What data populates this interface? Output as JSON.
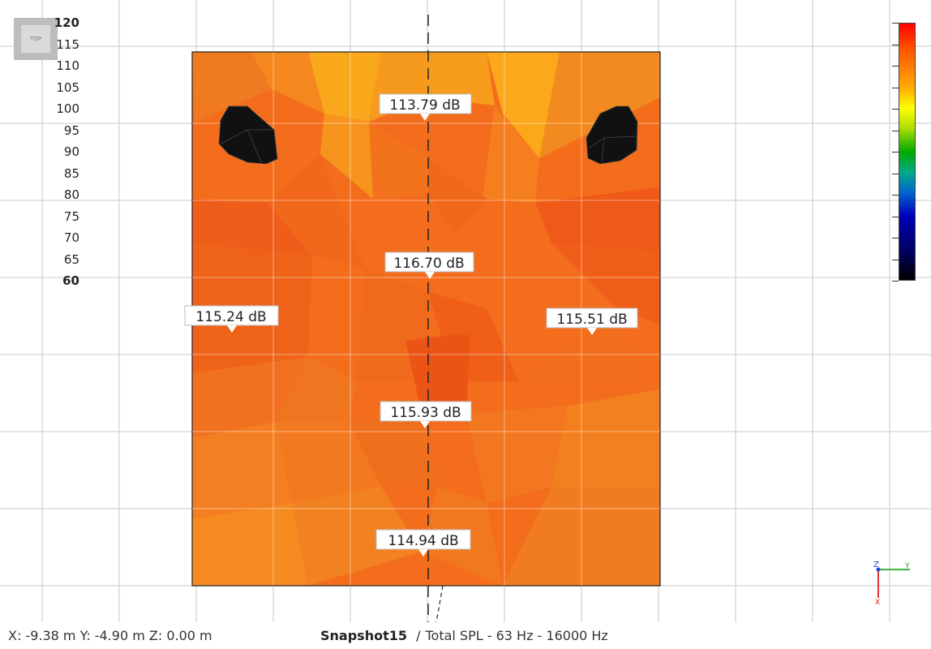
{
  "view": {
    "cube_label": "TOP",
    "axes": {
      "z": "Z",
      "y": "Y",
      "x": "X"
    }
  },
  "colorbar": {
    "max": 120,
    "min": 60,
    "ticks": [
      "120",
      "115",
      "110",
      "105",
      "100",
      "95",
      "90",
      "85",
      "80",
      "75",
      "70",
      "65",
      "60"
    ],
    "colors": {
      "high": "#ff0000",
      "mid": "#00aa00",
      "low": "#000000"
    }
  },
  "measurements": [
    {
      "label": "113.79 dB",
      "value": 113.79
    },
    {
      "label": "116.70 dB",
      "value": 116.7
    },
    {
      "label": "115.24 dB",
      "value": 115.24
    },
    {
      "label": "115.51 dB",
      "value": 115.51
    },
    {
      "label": "115.93 dB",
      "value": 115.93
    },
    {
      "label": "114.94 dB",
      "value": 114.94
    }
  ],
  "status": {
    "coordinates": "X: -9.38 m Y: -4.90 m Z: 0.00 m",
    "snapshot_name": "Snapshot15",
    "separator": "/",
    "snapshot_desc": "Total SPL - 63 Hz - 16000 Hz"
  }
}
